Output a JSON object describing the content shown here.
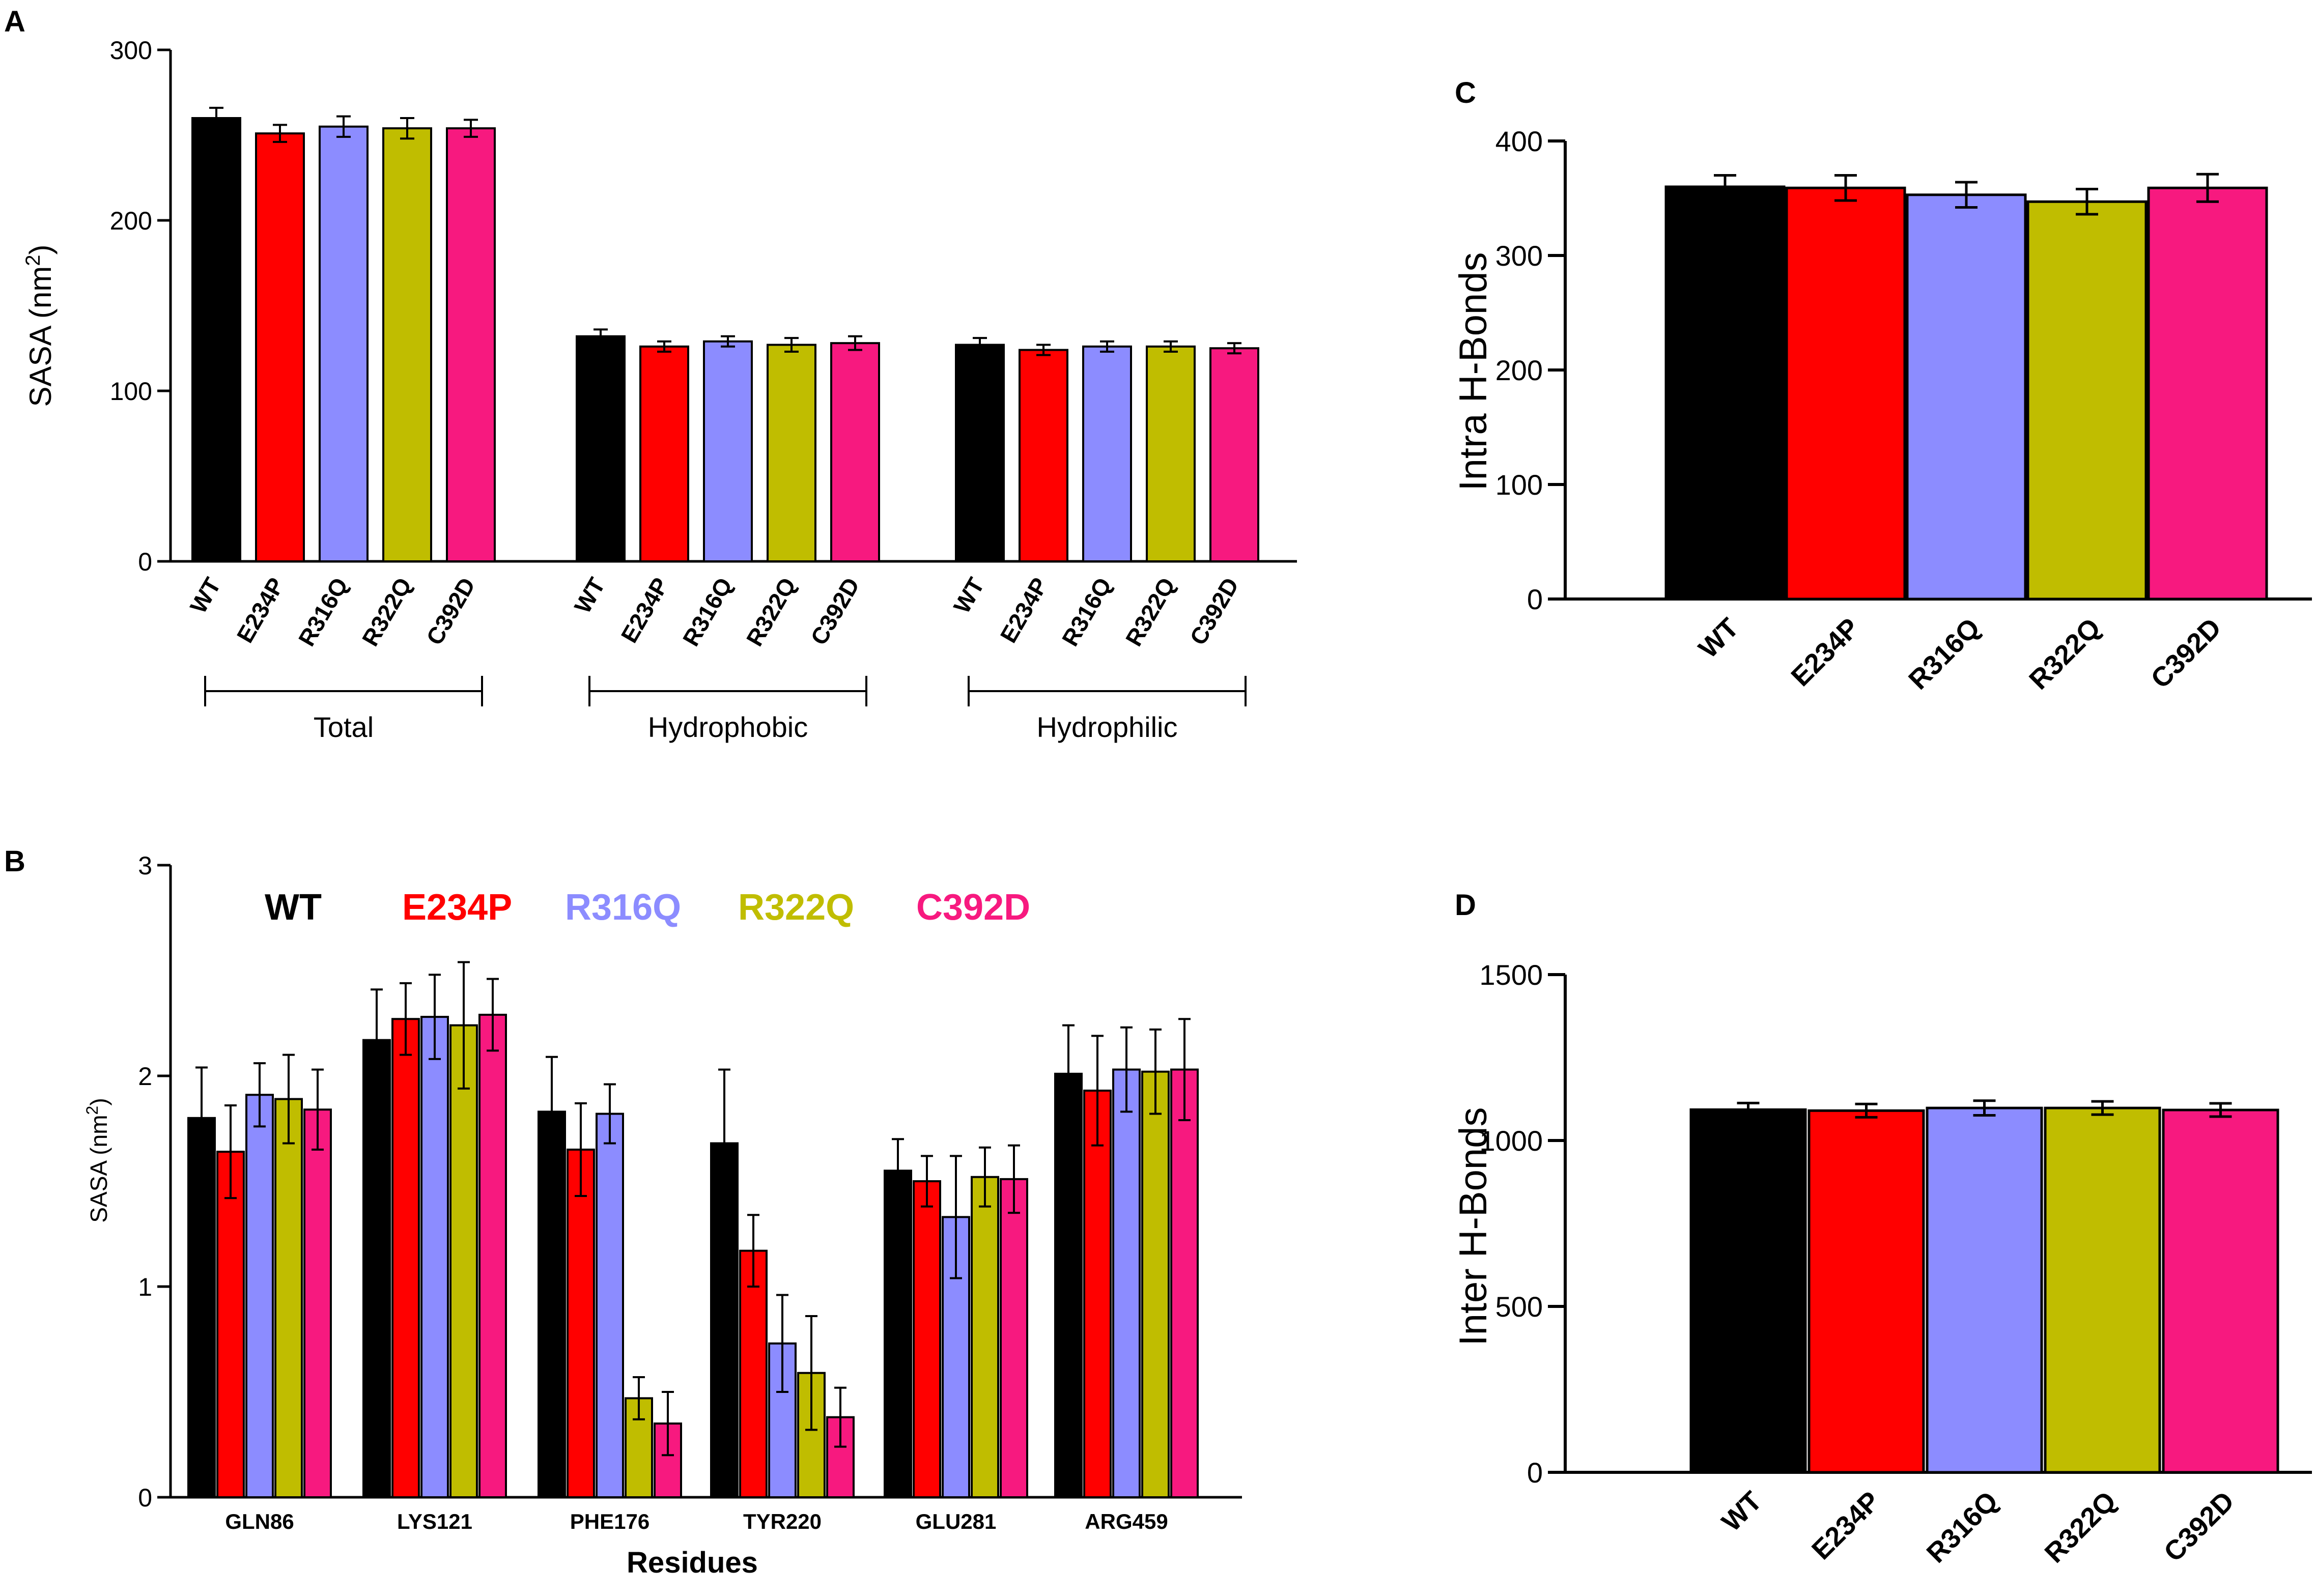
{
  "series_colors": {
    "WT": "#000000",
    "E234P": "#ff0000",
    "R316Q": "#8c8cff",
    "R322Q": "#c0bd00",
    "C392D": "#f7197f"
  },
  "chart_data": [
    {
      "panel": "A",
      "type": "bar",
      "title": "",
      "ylabel": "SASA (nm²)",
      "ylabel_main": "SASA (nm",
      "ylabel_sup": "2",
      "ylabel_close": ")",
      "xlabel": "",
      "ylim": [
        0,
        300
      ],
      "yticks": [
        0,
        100,
        200,
        300
      ],
      "grid": false,
      "groups": [
        "Total",
        "Hydrophobic",
        "Hydrophilic"
      ],
      "series": [
        {
          "name": "WT",
          "values": [
            260,
            132,
            127
          ],
          "errors": [
            6,
            4,
            4
          ]
        },
        {
          "name": "E234P",
          "values": [
            251,
            126,
            124
          ],
          "errors": [
            5,
            3,
            3
          ]
        },
        {
          "name": "R316Q",
          "values": [
            255,
            129,
            126
          ],
          "errors": [
            6,
            3,
            3
          ]
        },
        {
          "name": "R322Q",
          "values": [
            254,
            127,
            126
          ],
          "errors": [
            6,
            4,
            3
          ]
        },
        {
          "name": "C392D",
          "values": [
            254,
            128,
            125
          ],
          "errors": [
            5,
            4,
            3
          ]
        }
      ]
    },
    {
      "panel": "B",
      "type": "bar",
      "title": "",
      "ylabel": "SASA (nm²)",
      "ylabel_main": "SASA (nm",
      "ylabel_sup": "2",
      "ylabel_close": ")",
      "xlabel": "Residues",
      "ylim": [
        0,
        3
      ],
      "yticks": [
        0,
        1,
        2,
        3
      ],
      "grid": false,
      "legend": [
        "WT",
        "E234P",
        "R316Q",
        "R322Q",
        "C392D"
      ],
      "legend_position": "top",
      "categories": [
        "GLN86",
        "LYS121",
        "PHE176",
        "TYR220",
        "GLU281",
        "ARG459"
      ],
      "series": [
        {
          "name": "WT",
          "values": [
            1.8,
            2.17,
            1.83,
            1.68,
            1.55,
            2.01
          ],
          "errors": [
            0.24,
            0.24,
            0.26,
            0.35,
            0.15,
            0.23
          ]
        },
        {
          "name": "E234P",
          "values": [
            1.64,
            2.27,
            1.65,
            1.17,
            1.5,
            1.93
          ],
          "errors": [
            0.22,
            0.17,
            0.22,
            0.17,
            0.12,
            0.26
          ]
        },
        {
          "name": "R316Q",
          "values": [
            1.91,
            2.28,
            1.82,
            0.73,
            1.33,
            2.03
          ],
          "errors": [
            0.15,
            0.2,
            0.14,
            0.23,
            0.29,
            0.2
          ]
        },
        {
          "name": "R322Q",
          "values": [
            1.89,
            2.24,
            0.47,
            0.59,
            1.52,
            2.02
          ],
          "errors": [
            0.21,
            0.3,
            0.1,
            0.27,
            0.14,
            0.2
          ]
        },
        {
          "name": "C392D",
          "values": [
            1.84,
            2.29,
            0.35,
            0.38,
            1.51,
            2.03
          ],
          "errors": [
            0.19,
            0.17,
            0.15,
            0.14,
            0.16,
            0.24
          ]
        }
      ]
    },
    {
      "panel": "C",
      "type": "bar",
      "title": "",
      "ylabel": "Intra H-Bonds",
      "xlabel": "",
      "ylim": [
        0,
        400
      ],
      "yticks": [
        0,
        100,
        200,
        300,
        400
      ],
      "grid": false,
      "categories": [
        "WT",
        "E234P",
        "R316Q",
        "R322Q",
        "C392D"
      ],
      "values": [
        360,
        359,
        353,
        347,
        359
      ],
      "errors": [
        10,
        11,
        11,
        11,
        12
      ]
    },
    {
      "panel": "D",
      "type": "bar",
      "title": "",
      "ylabel": "Inter H-Bonds",
      "xlabel": "",
      "ylim": [
        0,
        1500
      ],
      "yticks": [
        0,
        500,
        1000,
        1500
      ],
      "grid": false,
      "categories": [
        "WT",
        "E234P",
        "R316Q",
        "R322Q",
        "C392D"
      ],
      "values": [
        1093,
        1090,
        1098,
        1098,
        1092
      ],
      "errors": [
        20,
        20,
        22,
        20,
        20
      ]
    }
  ]
}
